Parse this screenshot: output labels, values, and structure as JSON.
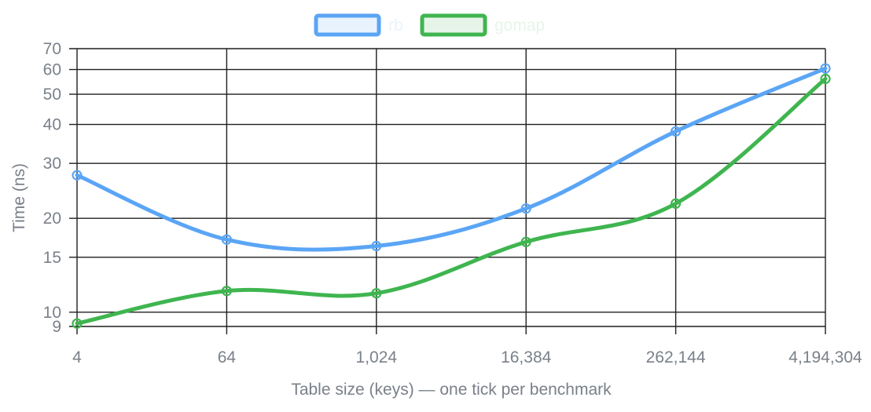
{
  "chart_data": {
    "type": "line",
    "x_scale": "log2",
    "y_scale": "log",
    "xlabel": "Table size (keys) — one tick per benchmark",
    "ylabel": "Time (ns)",
    "x": [
      4,
      64,
      1024,
      16384,
      262144,
      4194304
    ],
    "x_tick_labels": [
      "4",
      "64",
      "1,024",
      "16,384",
      "262,144",
      "4,194,304"
    ],
    "ylim": [
      9,
      70
    ],
    "y_ticks": [
      9,
      10,
      15,
      20,
      30,
      40,
      50,
      60,
      70
    ],
    "y_tick_labels": [
      "9",
      "10",
      "15",
      "20",
      "30",
      "40",
      "50",
      "60",
      "70"
    ],
    "grid": true,
    "legend_position": "top",
    "series": [
      {
        "name": "rb",
        "color": "#5aa5f5",
        "fill": "#e9f3fd",
        "values": [
          27.5,
          17.1,
          16.3,
          21.5,
          38,
          60.5
        ]
      },
      {
        "name": "gomap",
        "color": "#3fb54f",
        "fill": "#e7f5e9",
        "values": [
          9.2,
          11.7,
          11.5,
          16.8,
          22.3,
          56
        ]
      }
    ]
  }
}
